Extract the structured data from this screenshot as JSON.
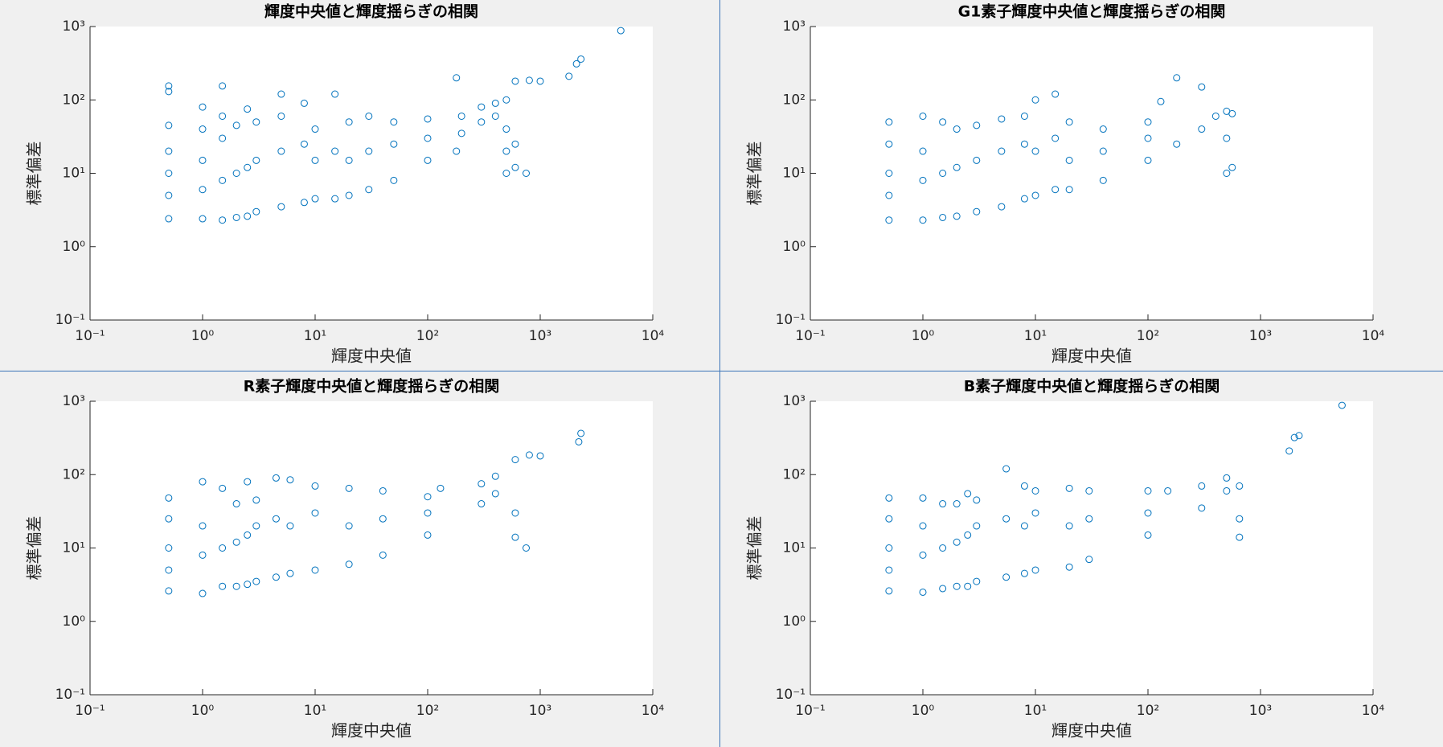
{
  "chart_data": [
    {
      "type": "scatter",
      "title": "輝度中央値と輝度揺らぎの相関",
      "x_label": "輝度中央値",
      "y_label": "標準偏差",
      "xscale": "log",
      "yscale": "log",
      "color": "#0072bd",
      "xlim": [
        0.1,
        10000
      ],
      "ylim": [
        0.1,
        1000
      ],
      "xticks": [
        {
          "value": 0.1,
          "label": "10⁻¹"
        },
        {
          "value": 1,
          "label": "10⁰"
        },
        {
          "value": 10,
          "label": "10¹"
        },
        {
          "value": 100,
          "label": "10²"
        },
        {
          "value": 1000,
          "label": "10³"
        },
        {
          "value": 10000,
          "label": "10⁴"
        }
      ],
      "yticks": [
        {
          "value": 0.1,
          "label": "10⁻¹"
        },
        {
          "value": 1,
          "label": "10⁰"
        },
        {
          "value": 10,
          "label": "10¹"
        },
        {
          "value": 100,
          "label": "10²"
        },
        {
          "value": 1000,
          "label": "10³"
        }
      ],
      "x": [
        0.5,
        0.5,
        0.5,
        0.5,
        0.5,
        0.5,
        0.5,
        1,
        1,
        1,
        1,
        1,
        1.5,
        1.5,
        1.5,
        1.5,
        1.5,
        2,
        2,
        2,
        2.5,
        2.5,
        2.5,
        3,
        3,
        3,
        5,
        5,
        5,
        5,
        8,
        8,
        8,
        10,
        10,
        10,
        15,
        15,
        15,
        20,
        20,
        20,
        30,
        30,
        30,
        50,
        50,
        50,
        100,
        100,
        100,
        180,
        180,
        200,
        200,
        300,
        300,
        400,
        400,
        500,
        500,
        500,
        500,
        600,
        600,
        600,
        750,
        800,
        1000,
        1800,
        2100,
        2300,
        5200
      ],
      "values": [
        2.4,
        5,
        10,
        20,
        45,
        130,
        155,
        2.4,
        6,
        15,
        40,
        80,
        2.3,
        8,
        30,
        60,
        155,
        2.5,
        10,
        45,
        2.6,
        12,
        75,
        3,
        15,
        50,
        3.5,
        20,
        60,
        120,
        4,
        25,
        90,
        4.5,
        15,
        40,
        4.5,
        20,
        120,
        5,
        15,
        50,
        6,
        20,
        60,
        8,
        25,
        50,
        15,
        30,
        55,
        20,
        200,
        35,
        60,
        50,
        80,
        60,
        90,
        10,
        20,
        40,
        100,
        12,
        25,
        180,
        10,
        185,
        180,
        210,
        310,
        360,
        880
      ]
    },
    {
      "type": "scatter",
      "title": "G1素子輝度中央値と輝度揺らぎの相関",
      "x_label": "輝度中央値",
      "y_label": "標準偏差",
      "xscale": "log",
      "yscale": "log",
      "color": "#0072bd",
      "xlim": [
        0.1,
        10000
      ],
      "ylim": [
        0.1,
        1000
      ],
      "xticks": [
        {
          "value": 0.1,
          "label": "10⁻¹"
        },
        {
          "value": 1,
          "label": "10⁰"
        },
        {
          "value": 10,
          "label": "10¹"
        },
        {
          "value": 100,
          "label": "10²"
        },
        {
          "value": 1000,
          "label": "10³"
        },
        {
          "value": 10000,
          "label": "10⁴"
        }
      ],
      "yticks": [
        {
          "value": 0.1,
          "label": "10⁻¹"
        },
        {
          "value": 1,
          "label": "10⁰"
        },
        {
          "value": 10,
          "label": "10¹"
        },
        {
          "value": 100,
          "label": "10²"
        },
        {
          "value": 1000,
          "label": "10³"
        }
      ],
      "x": [
        0.5,
        0.5,
        0.5,
        0.5,
        0.5,
        1,
        1,
        1,
        1,
        1.5,
        1.5,
        1.5,
        2,
        2,
        2,
        3,
        3,
        3,
        5,
        5,
        5,
        8,
        8,
        8,
        10,
        10,
        10,
        15,
        15,
        15,
        20,
        20,
        20,
        40,
        40,
        40,
        100,
        100,
        100,
        130,
        180,
        180,
        300,
        300,
        400,
        500,
        500,
        500,
        560,
        560
      ],
      "values": [
        2.3,
        5,
        10,
        25,
        50,
        2.3,
        8,
        20,
        60,
        2.5,
        10,
        50,
        2.6,
        12,
        40,
        3,
        15,
        45,
        3.5,
        20,
        55,
        4.5,
        25,
        60,
        5,
        20,
        100,
        6,
        30,
        120,
        6,
        15,
        50,
        8,
        20,
        40,
        15,
        30,
        50,
        95,
        25,
        200,
        40,
        150,
        60,
        10,
        30,
        70,
        12,
        65
      ]
    },
    {
      "type": "scatter",
      "title": "R素子輝度中央値と輝度揺らぎの相関",
      "x_label": "輝度中央値",
      "y_label": "標準偏差",
      "xscale": "log",
      "yscale": "log",
      "color": "#0072bd",
      "xlim": [
        0.1,
        10000
      ],
      "ylim": [
        0.1,
        1000
      ],
      "xticks": [
        {
          "value": 0.1,
          "label": "10⁻¹"
        },
        {
          "value": 1,
          "label": "10⁰"
        },
        {
          "value": 10,
          "label": "10¹"
        },
        {
          "value": 100,
          "label": "10²"
        },
        {
          "value": 1000,
          "label": "10³"
        },
        {
          "value": 10000,
          "label": "10⁴"
        }
      ],
      "yticks": [
        {
          "value": 0.1,
          "label": "10⁻¹"
        },
        {
          "value": 1,
          "label": "10⁰"
        },
        {
          "value": 10,
          "label": "10¹"
        },
        {
          "value": 100,
          "label": "10²"
        },
        {
          "value": 1000,
          "label": "10³"
        }
      ],
      "x": [
        0.5,
        0.5,
        0.5,
        0.5,
        0.5,
        1,
        1,
        1,
        1,
        1.5,
        1.5,
        1.5,
        2,
        2,
        2,
        2.5,
        2.5,
        2.5,
        3,
        3,
        3,
        4.5,
        4.5,
        4.5,
        6,
        6,
        6,
        10,
        10,
        10,
        20,
        20,
        20,
        40,
        40,
        40,
        100,
        100,
        100,
        130,
        300,
        300,
        400,
        400,
        600,
        600,
        600,
        750,
        800,
        1000,
        2200,
        2300
      ],
      "values": [
        2.6,
        5,
        10,
        25,
        48,
        2.4,
        8,
        20,
        80,
        3,
        10,
        65,
        3,
        12,
        40,
        3.2,
        15,
        80,
        3.5,
        20,
        45,
        4,
        25,
        90,
        4.5,
        20,
        85,
        5,
        30,
        70,
        6,
        20,
        65,
        8,
        25,
        60,
        15,
        30,
        50,
        65,
        40,
        75,
        55,
        95,
        14,
        30,
        160,
        10,
        185,
        180,
        280,
        365
      ]
    },
    {
      "type": "scatter",
      "title": "B素子輝度中央値と輝度揺らぎの相関",
      "x_label": "輝度中央値",
      "y_label": "標準偏差",
      "xscale": "log",
      "yscale": "log",
      "color": "#0072bd",
      "xlim": [
        0.1,
        10000
      ],
      "ylim": [
        0.1,
        1000
      ],
      "xticks": [
        {
          "value": 0.1,
          "label": "10⁻¹"
        },
        {
          "value": 1,
          "label": "10⁰"
        },
        {
          "value": 10,
          "label": "10¹"
        },
        {
          "value": 100,
          "label": "10²"
        },
        {
          "value": 1000,
          "label": "10³"
        },
        {
          "value": 10000,
          "label": "10⁴"
        }
      ],
      "yticks": [
        {
          "value": 0.1,
          "label": "10⁻¹"
        },
        {
          "value": 1,
          "label": "10⁰"
        },
        {
          "value": 10,
          "label": "10¹"
        },
        {
          "value": 100,
          "label": "10²"
        },
        {
          "value": 1000,
          "label": "10³"
        }
      ],
      "x": [
        0.5,
        0.5,
        0.5,
        0.5,
        0.5,
        1,
        1,
        1,
        1,
        1.5,
        1.5,
        1.5,
        2,
        2,
        2,
        2.5,
        2.5,
        2.5,
        3,
        3,
        3,
        5.5,
        5.5,
        5.5,
        8,
        8,
        8,
        10,
        10,
        10,
        20,
        20,
        20,
        30,
        30,
        30,
        100,
        100,
        100,
        150,
        300,
        300,
        500,
        500,
        650,
        650,
        650,
        1800,
        2000,
        2200,
        5300
      ],
      "values": [
        2.6,
        5,
        10,
        25,
        48,
        2.5,
        8,
        20,
        48,
        2.8,
        10,
        40,
        3,
        12,
        40,
        3,
        15,
        55,
        3.5,
        20,
        45,
        4,
        25,
        120,
        4.5,
        20,
        70,
        5,
        30,
        60,
        5.5,
        20,
        65,
        7,
        25,
        60,
        15,
        30,
        60,
        60,
        35,
        70,
        60,
        90,
        14,
        25,
        70,
        210,
        320,
        340,
        880
      ]
    }
  ]
}
